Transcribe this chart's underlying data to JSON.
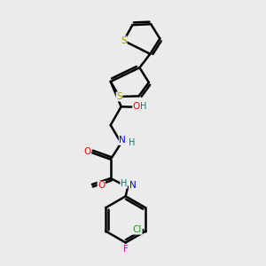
{
  "bg_color": "#ebebeb",
  "bond_color": "#000000",
  "bond_width": 1.8,
  "figsize": [
    3.0,
    3.0
  ],
  "dpi": 100,
  "atom_colors": {
    "S": "#999900",
    "N": "#0000FF",
    "O": "#FF0000",
    "Cl": "#00AA00",
    "F": "#CC00CC",
    "C": "#000000",
    "H": "#008080"
  },
  "font_size": 7.5,
  "title": ""
}
